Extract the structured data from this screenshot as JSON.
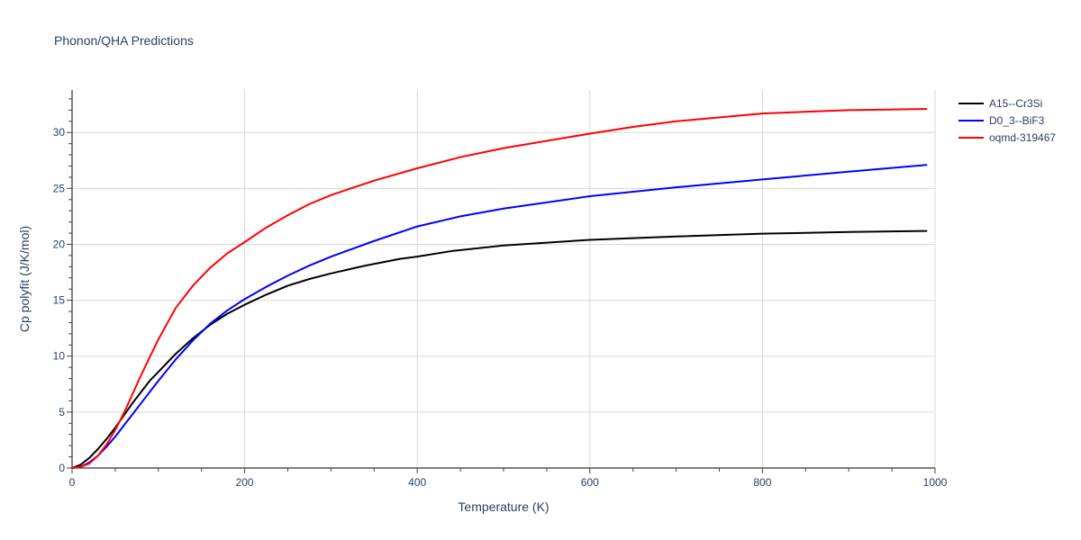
{
  "chart_data": {
    "type": "line",
    "title": "Phonon/QHA Predictions",
    "xlabel": "Temperature (K)",
    "ylabel": "Cp polyfit (J/K/mol)",
    "xlim": [
      0,
      1000
    ],
    "ylim": [
      0,
      33.8
    ],
    "xticks": [
      0,
      200,
      400,
      600,
      800,
      1000
    ],
    "yticks": [
      0,
      5,
      10,
      15,
      20,
      25,
      30
    ],
    "grid": true,
    "legend_position": "top-right",
    "series": [
      {
        "name": "A15--Cr3Si",
        "color": "#000000",
        "x": [
          0,
          10,
          20,
          30,
          40,
          50,
          60,
          70,
          80,
          90,
          100,
          120,
          140,
          160,
          180,
          200,
          225,
          250,
          275,
          300,
          340,
          380,
          400,
          440,
          500,
          600,
          700,
          800,
          900,
          990
        ],
        "y": [
          0,
          0.3,
          0.9,
          1.7,
          2.6,
          3.6,
          4.7,
          5.8,
          6.8,
          7.8,
          8.6,
          10.2,
          11.6,
          12.8,
          13.8,
          14.6,
          15.5,
          16.3,
          16.9,
          17.4,
          18.1,
          18.7,
          18.9,
          19.4,
          19.9,
          20.4,
          20.7,
          20.95,
          21.1,
          21.2
        ]
      },
      {
        "name": "D0_3--BiF3",
        "color": "#0000ff",
        "x": [
          0,
          10,
          20,
          30,
          40,
          50,
          60,
          70,
          80,
          90,
          100,
          120,
          140,
          160,
          180,
          200,
          225,
          250,
          275,
          300,
          350,
          400,
          450,
          500,
          600,
          700,
          800,
          900,
          990
        ],
        "y": [
          0,
          0.1,
          0.5,
          1.1,
          1.9,
          2.8,
          3.8,
          4.8,
          5.8,
          6.8,
          7.8,
          9.7,
          11.4,
          12.9,
          14.1,
          15.1,
          16.2,
          17.2,
          18.1,
          18.9,
          20.3,
          21.6,
          22.5,
          23.2,
          24.3,
          25.1,
          25.8,
          26.5,
          27.1
        ]
      },
      {
        "name": "oqmd-319467",
        "color": "#ff0000",
        "x": [
          0,
          10,
          20,
          30,
          40,
          50,
          60,
          70,
          80,
          90,
          100,
          120,
          140,
          160,
          180,
          200,
          225,
          250,
          275,
          300,
          350,
          400,
          450,
          500,
          600,
          650,
          700,
          800,
          900,
          990
        ],
        "y": [
          0,
          0.1,
          0.4,
          1.1,
          2.1,
          3.4,
          4.9,
          6.6,
          8.3,
          9.9,
          11.5,
          14.3,
          16.3,
          17.9,
          19.2,
          20.2,
          21.5,
          22.6,
          23.6,
          24.4,
          25.7,
          26.8,
          27.8,
          28.6,
          29.9,
          30.5,
          31.0,
          31.7,
          32.0,
          32.1
        ]
      }
    ]
  }
}
